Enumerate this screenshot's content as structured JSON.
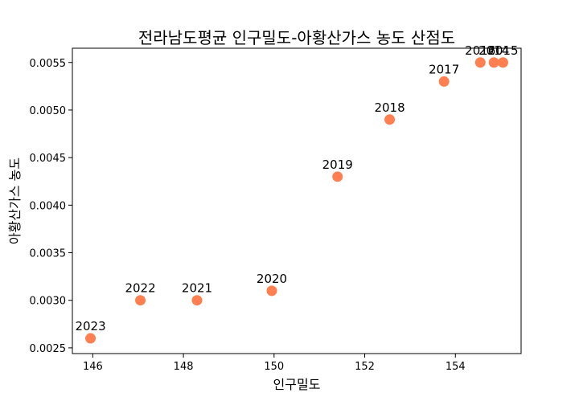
{
  "chart_data": {
    "type": "scatter",
    "title": "전라남도평균 인구밀도-아황산가스 농도 산점도",
    "xlabel": "인구밀도",
    "ylabel": "아황산가스 농도",
    "xlim": [
      145.55,
      155.45
    ],
    "ylim": [
      0.00244,
      0.00565
    ],
    "xticks": [
      "146",
      "148",
      "150",
      "152",
      "154"
    ],
    "xtick_values": [
      146,
      148,
      150,
      152,
      154
    ],
    "yticks": [
      "0.0025",
      "0.0030",
      "0.0035",
      "0.0040",
      "0.0045",
      "0.0050",
      "0.0055"
    ],
    "ytick_values": [
      0.0025,
      0.003,
      0.0035,
      0.004,
      0.0045,
      0.005,
      0.0055
    ],
    "marker_color": "#ff7f50",
    "grid": false,
    "points": [
      {
        "label": "2023",
        "x": 145.95,
        "y": 0.0026
      },
      {
        "label": "2022",
        "x": 147.05,
        "y": 0.003
      },
      {
        "label": "2021",
        "x": 148.3,
        "y": 0.003
      },
      {
        "label": "2020",
        "x": 149.95,
        "y": 0.0031
      },
      {
        "label": "2019",
        "x": 151.4,
        "y": 0.0043
      },
      {
        "label": "2018",
        "x": 152.55,
        "y": 0.0049
      },
      {
        "label": "2017",
        "x": 153.75,
        "y": 0.0053
      },
      {
        "label": "2016",
        "x": 154.55,
        "y": 0.0055
      },
      {
        "label": "2014",
        "x": 154.85,
        "y": 0.0055
      },
      {
        "label": "2015",
        "x": 155.05,
        "y": 0.0055
      }
    ]
  }
}
